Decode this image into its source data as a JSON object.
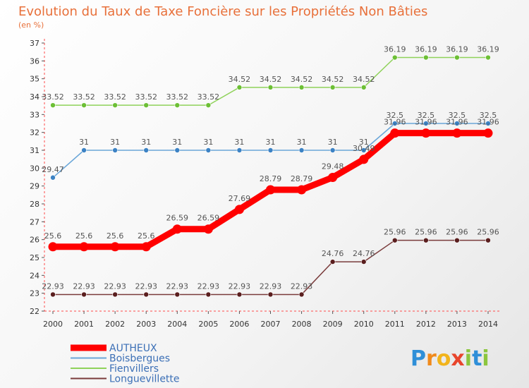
{
  "chart_data": {
    "type": "line",
    "title": "Evolution du Taux de Taxe Foncière sur les Propriétés Non Bâties",
    "subtitle": "(en %)",
    "xlabel": "",
    "ylabel": "",
    "x": [
      "2000",
      "2001",
      "2002",
      "2003",
      "2004",
      "2005",
      "2006",
      "2007",
      "2008",
      "2009",
      "2010",
      "2011",
      "2012",
      "2013",
      "2014"
    ],
    "ylim": [
      22,
      37
    ],
    "yticks": [
      22,
      23,
      24,
      25,
      26,
      27,
      28,
      29,
      30,
      31,
      32,
      33,
      34,
      35,
      36,
      37
    ],
    "grid": false,
    "legend_position": "bottom-left",
    "series": [
      {
        "name": "AUTHEUX",
        "color": "#ff0000",
        "emphasis": true,
        "values": [
          25.6,
          25.6,
          25.6,
          25.6,
          26.59,
          26.59,
          27.69,
          28.79,
          28.79,
          29.48,
          30.49,
          31.96,
          31.96,
          31.96,
          31.96
        ],
        "labels": [
          "25.6",
          "25.6",
          "25.6",
          "25.6",
          "26.59",
          "26.59",
          "27.69",
          "28.79",
          "28.79",
          "29.48",
          "30.49",
          "31.96",
          "31.96",
          "31.96",
          "31.96"
        ]
      },
      {
        "name": "Boisbergues",
        "color": "#6aa6d8",
        "point_color": "#3c82c4",
        "values": [
          29.47,
          31,
          31,
          31,
          31,
          31,
          31,
          31,
          31,
          31,
          31,
          32.5,
          32.5,
          32.5,
          32.5
        ],
        "labels": [
          "29.47",
          "31",
          "31",
          "31",
          "31",
          "31",
          "31",
          "31",
          "31",
          "31",
          "31",
          "32.5",
          "32.5",
          "32.5",
          "32.5"
        ]
      },
      {
        "name": "Fienvillers",
        "color": "#8fd25a",
        "point_color": "#6cbf35",
        "values": [
          33.52,
          33.52,
          33.52,
          33.52,
          33.52,
          33.52,
          34.52,
          34.52,
          34.52,
          34.52,
          34.52,
          36.19,
          36.19,
          36.19,
          36.19
        ],
        "labels": [
          "33.52",
          "33.52",
          "33.52",
          "33.52",
          "33.52",
          "33.52",
          "34.52",
          "34.52",
          "34.52",
          "34.52",
          "34.52",
          "36.19",
          "36.19",
          "36.19",
          "36.19"
        ]
      },
      {
        "name": "Longuevillette",
        "color": "#7a3b3b",
        "point_color": "#5a1e1e",
        "values": [
          22.93,
          22.93,
          22.93,
          22.93,
          22.93,
          22.93,
          22.93,
          22.93,
          22.93,
          24.76,
          24.76,
          25.96,
          25.96,
          25.96,
          25.96
        ],
        "labels": [
          "22.93",
          "22.93",
          "22.93",
          "22.93",
          "22.93",
          "22.93",
          "22.93",
          "22.93",
          "22.93",
          "24.76",
          "24.76",
          "25.96",
          "25.96",
          "25.96",
          "25.96"
        ]
      }
    ]
  },
  "brand": {
    "letters": [
      "P",
      "r",
      "o",
      "x",
      "i",
      "t",
      "i"
    ],
    "colors": [
      "#2f8fd8",
      "#f08a1c",
      "#f2b41c",
      "#e8452c",
      "#8cc63e",
      "#2f8fd8",
      "#8cc63e"
    ]
  }
}
